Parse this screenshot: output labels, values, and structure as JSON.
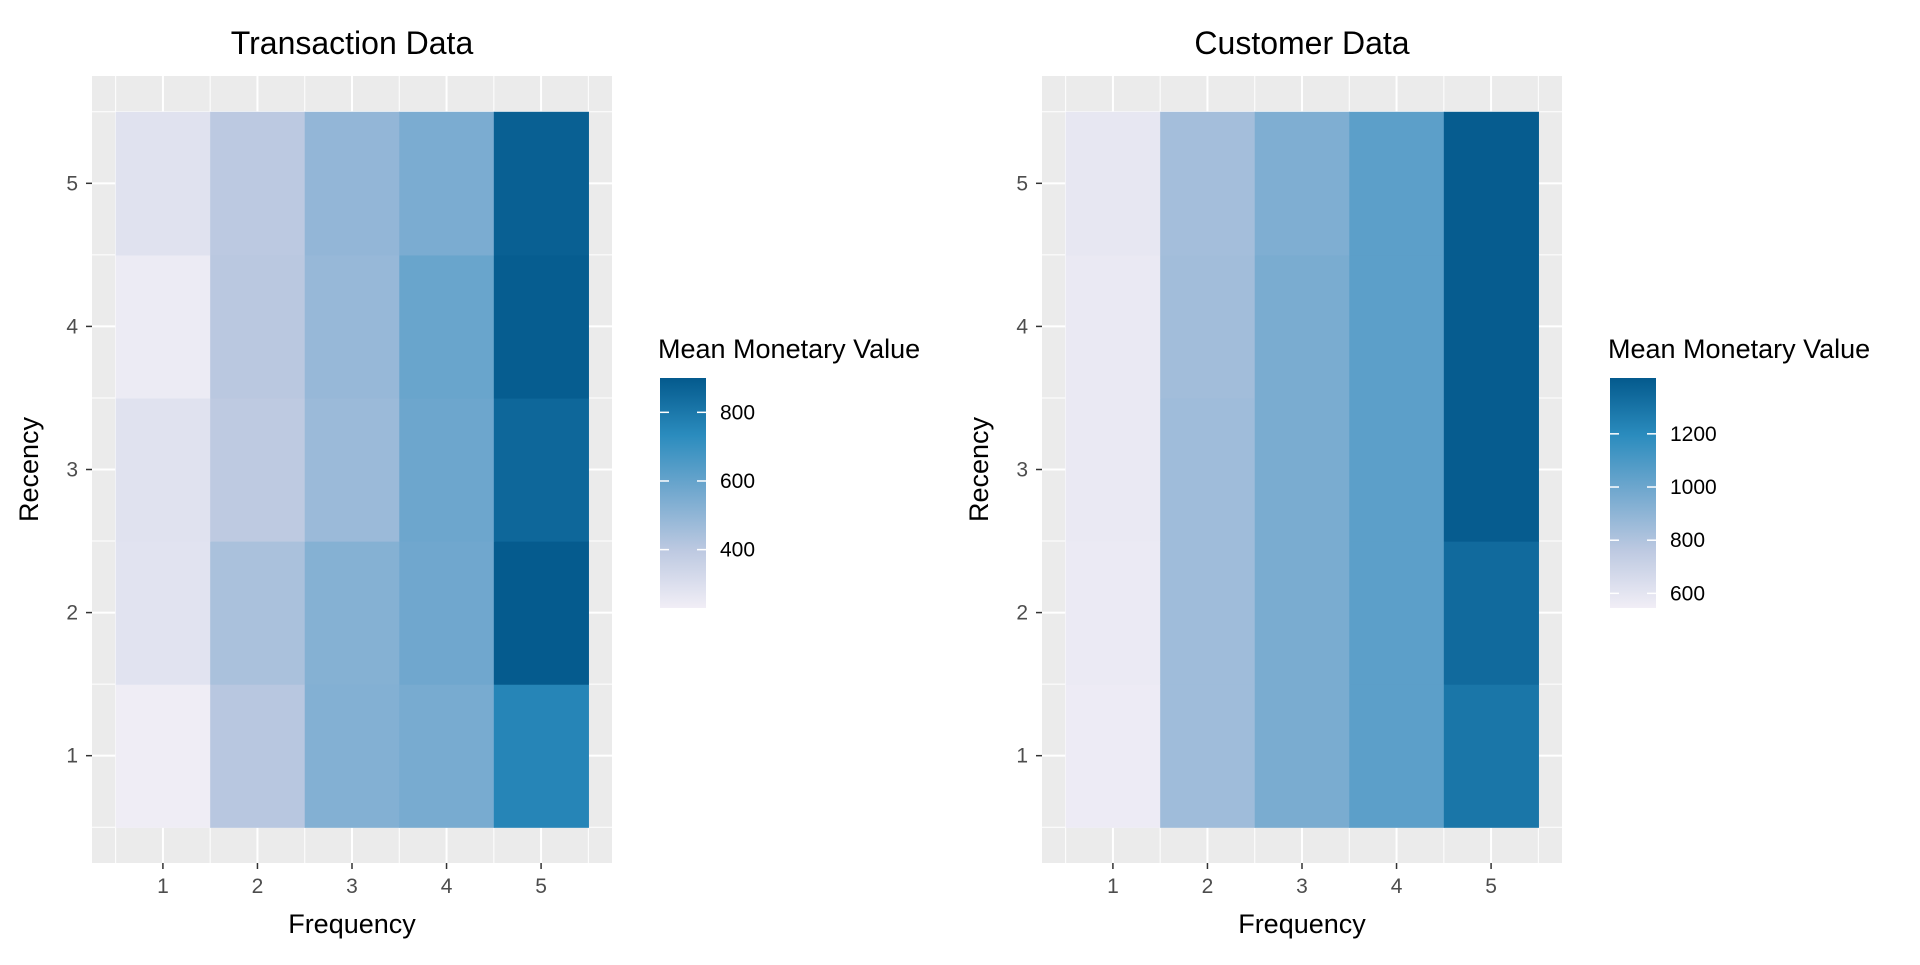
{
  "chart_data": [
    {
      "type": "heatmap",
      "title": "Transaction Data",
      "xlabel": "Frequency",
      "ylabel": "Recency",
      "x_categories": [
        "1",
        "2",
        "3",
        "4",
        "5"
      ],
      "y_categories": [
        "1",
        "2",
        "3",
        "4",
        "5"
      ],
      "values": [
        [
          235,
          410,
          530,
          555,
          755
        ],
        [
          280,
          440,
          525,
          575,
          895
        ],
        [
          285,
          395,
          475,
          580,
          855
        ],
        [
          245,
          405,
          485,
          590,
          890
        ],
        [
          285,
          400,
          495,
          550,
          880
        ]
      ],
      "legend": {
        "title": "Mean Monetary Value",
        "range": [
          230,
          900
        ],
        "ticks": [
          400,
          600,
          800
        ],
        "tick_labels": [
          "400",
          "600",
          "800"
        ],
        "colors": [
          "#f1eef6",
          "#bdc9e1",
          "#74a9cf",
          "#2b8cbe",
          "#045a8d"
        ]
      }
    },
    {
      "type": "heatmap",
      "title": "Customer Data",
      "xlabel": "Frequency",
      "ylabel": "Recency",
      "x_categories": [
        "1",
        "2",
        "3",
        "4",
        "5"
      ],
      "y_categories": [
        "1",
        "2",
        "3",
        "4",
        "5"
      ],
      "values": [
        [
          560,
          850,
          960,
          1050,
          1290
        ],
        [
          570,
          850,
          960,
          1050,
          1340
        ],
        [
          575,
          850,
          960,
          1050,
          1400
        ],
        [
          575,
          840,
          960,
          1050,
          1400
        ],
        [
          585,
          835,
          945,
          1050,
          1400
        ]
      ],
      "legend": {
        "title": "Mean Monetary Value",
        "range": [
          545,
          1410
        ],
        "ticks": [
          600,
          800,
          1000,
          1200
        ],
        "tick_labels": [
          "600",
          "800",
          "1000",
          "1200"
        ],
        "colors": [
          "#f1eef6",
          "#bdc9e1",
          "#74a9cf",
          "#2b8cbe",
          "#045a8d"
        ]
      }
    }
  ]
}
